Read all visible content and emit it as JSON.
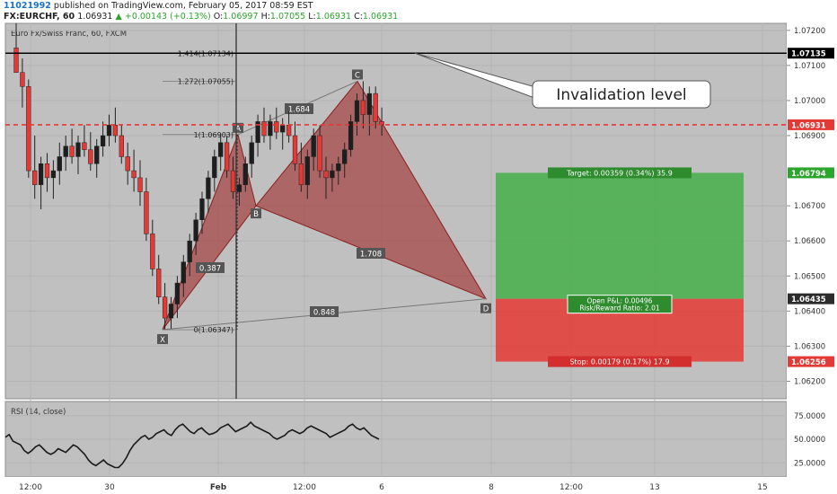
{
  "header": {
    "publish_id": "11021992",
    "publish_text": " published on TradingView.com, February 05, 2017 08:59 EST",
    "symbol": "FX:EURCHF, 60",
    "last": "1.06931",
    "change": "+0.00143 (+0.13%)",
    "open_label": "O:",
    "open": "1.06997",
    "high_label": "H:",
    "high": "1.07055",
    "low_label": "L:",
    "low": "1.06931",
    "close_label": "C:",
    "close": "1.06931"
  },
  "chart_data": {
    "type": "candlestick",
    "title": "Euro Fx/Swiss Franc, 60, FXCM",
    "price_axis": [
      "1.07200",
      "1.07100",
      "1.07000",
      "1.06900",
      "1.06700",
      "1.06600",
      "1.06500",
      "1.06400",
      "1.06300",
      "1.06200"
    ],
    "price_range": [
      1.0615,
      1.0722
    ],
    "price_tags": [
      {
        "label": "1.07135",
        "value": 1.07135,
        "color": "#000000"
      },
      {
        "label": "1.06931",
        "value": 1.06931,
        "color": "#e53935"
      },
      {
        "label": "1.06794",
        "value": 1.06794,
        "color": "#2ba52b"
      },
      {
        "label": "1.06435",
        "value": 1.06435,
        "color": "#2c2c2c"
      },
      {
        "label": "1.06256",
        "value": 1.06256,
        "color": "#e53935"
      }
    ],
    "time_axis": [
      "12:00",
      "30",
      "Feb",
      "12:00",
      "6",
      "8",
      "12:00",
      "13",
      "15"
    ],
    "harmonic": {
      "points": [
        {
          "label": "X",
          "value": 1.06347
        },
        {
          "label": "A",
          "value": 1.06903
        },
        {
          "label": "B",
          "value": 1.067
        },
        {
          "label": "C",
          "value": 1.07055
        },
        {
          "label": "D",
          "value": 1.06435
        }
      ],
      "ratios": [
        "0.387",
        "1.684",
        "1.708",
        "0.848"
      ]
    },
    "fib_levels": [
      {
        "label": "1.414(1.07134)",
        "value": 1.07134
      },
      {
        "label": "1.272(1.07055)",
        "value": 1.07055
      },
      {
        "label": "1(1.06903)",
        "value": 1.06903
      },
      {
        "label": "0(1.06347)",
        "value": 1.06347
      }
    ],
    "position": {
      "target": "Target: 0.00359 (0.34%) 35.9",
      "stop": "Stop: 0.00179 (0.17%) 17.9",
      "pnl": "Open P&L: 0.00496",
      "rr": "Risk/Reward Ratio: 2.01",
      "entry": 1.06435,
      "target_value": 1.06794,
      "stop_value": 1.06256
    },
    "annotation": "Invalidation level",
    "rsi": {
      "title": "RSI (14, close)",
      "axis": [
        "75.0000",
        "50.0000",
        "25.0000"
      ],
      "range": [
        10,
        90
      ],
      "values": [
        52,
        55,
        48,
        46,
        44,
        38,
        35,
        38,
        42,
        44,
        40,
        36,
        34,
        36,
        40,
        38,
        36,
        40,
        44,
        42,
        38,
        34,
        28,
        24,
        22,
        25,
        28,
        24,
        22,
        20,
        20,
        24,
        30,
        38,
        44,
        48,
        52,
        54,
        50,
        52,
        56,
        58,
        60,
        56,
        54,
        60,
        64,
        66,
        62,
        58,
        56,
        60,
        62,
        58,
        55,
        56,
        58,
        62,
        64,
        66,
        62,
        58,
        60,
        62,
        64,
        68,
        64,
        62,
        60,
        58,
        56,
        52,
        50,
        52,
        54,
        58,
        60,
        58,
        56,
        58,
        62,
        64,
        62,
        60,
        58,
        56,
        52,
        54,
        56,
        58,
        60,
        64,
        66,
        62,
        60,
        62,
        58,
        54,
        52,
        50
      ]
    },
    "candles": [
      [
        1.0715,
        1.0722,
        1.0708,
        1.0708
      ],
      [
        1.0708,
        1.0712,
        1.0698,
        1.0704
      ],
      [
        1.0704,
        1.0706,
        1.0678,
        1.068
      ],
      [
        1.068,
        1.069,
        1.0672,
        1.0676
      ],
      [
        1.0676,
        1.0684,
        1.0669,
        1.0682
      ],
      [
        1.0682,
        1.0685,
        1.0674,
        1.0678
      ],
      [
        1.0678,
        1.0683,
        1.0672,
        1.068
      ],
      [
        1.068,
        1.0688,
        1.0676,
        1.0684
      ],
      [
        1.0684,
        1.069,
        1.068,
        1.0687
      ],
      [
        1.0687,
        1.0692,
        1.0682,
        1.0684
      ],
      [
        1.0684,
        1.069,
        1.0679,
        1.0688
      ],
      [
        1.0688,
        1.0693,
        1.0684,
        1.0686
      ],
      [
        1.0686,
        1.0691,
        1.068,
        1.0682
      ],
      [
        1.0682,
        1.0689,
        1.0678,
        1.0687
      ],
      [
        1.0687,
        1.0694,
        1.0684,
        1.069
      ],
      [
        1.069,
        1.0696,
        1.0687,
        1.0693
      ],
      [
        1.0693,
        1.0698,
        1.0688,
        1.069
      ],
      [
        1.069,
        1.0693,
        1.0682,
        1.0684
      ],
      [
        1.0684,
        1.0688,
        1.0676,
        1.068
      ],
      [
        1.068,
        1.0686,
        1.0674,
        1.0678
      ],
      [
        1.0678,
        1.0683,
        1.067,
        1.0674
      ],
      [
        1.0674,
        1.0678,
        1.066,
        1.0662
      ],
      [
        1.0662,
        1.0666,
        1.065,
        1.0652
      ],
      [
        1.0652,
        1.0656,
        1.0642,
        1.0644
      ],
      [
        1.0644,
        1.0648,
        1.06347,
        1.0638
      ],
      [
        1.0638,
        1.0644,
        1.0635,
        1.0642
      ],
      [
        1.0642,
        1.065,
        1.0638,
        1.0648
      ],
      [
        1.0648,
        1.0656,
        1.0644,
        1.0654
      ],
      [
        1.0654,
        1.0662,
        1.065,
        1.066
      ],
      [
        1.066,
        1.0668,
        1.0656,
        1.0666
      ],
      [
        1.0666,
        1.0674,
        1.0662,
        1.0672
      ],
      [
        1.0672,
        1.068,
        1.0668,
        1.0678
      ],
      [
        1.0678,
        1.0686,
        1.0674,
        1.0684
      ],
      [
        1.0684,
        1.06903,
        1.068,
        1.0688
      ],
      [
        1.0688,
        1.069,
        1.0678,
        1.068
      ],
      [
        1.068,
        1.0684,
        1.0672,
        1.0674
      ],
      [
        1.0674,
        1.0678,
        1.067,
        1.0676
      ],
      [
        1.0676,
        1.0684,
        1.0674,
        1.0682
      ],
      [
        1.0682,
        1.069,
        1.0678,
        1.0688
      ],
      [
        1.0688,
        1.0696,
        1.0684,
        1.0694
      ],
      [
        1.0694,
        1.0698,
        1.0688,
        1.069
      ],
      [
        1.069,
        1.0696,
        1.0686,
        1.0694
      ],
      [
        1.0694,
        1.0698,
        1.0689,
        1.0691
      ],
      [
        1.0691,
        1.0695,
        1.0686,
        1.0693
      ],
      [
        1.0693,
        1.0697,
        1.0688,
        1.069
      ],
      [
        1.069,
        1.0694,
        1.068,
        1.0682
      ],
      [
        1.0682,
        1.0688,
        1.0674,
        1.0676
      ],
      [
        1.0676,
        1.0686,
        1.0672,
        1.0684
      ],
      [
        1.0684,
        1.0692,
        1.068,
        1.069
      ],
      [
        1.069,
        1.0693,
        1.0678,
        1.068
      ],
      [
        1.068,
        1.0684,
        1.0672,
        1.0678
      ],
      [
        1.0678,
        1.0682,
        1.0674,
        1.068
      ],
      [
        1.068,
        1.0684,
        1.0676,
        1.0682
      ],
      [
        1.0682,
        1.0688,
        1.0678,
        1.0686
      ],
      [
        1.0686,
        1.0696,
        1.0684,
        1.0694
      ],
      [
        1.0694,
        1.0702,
        1.069,
        1.07
      ],
      [
        1.07,
        1.07055,
        1.0692,
        1.0696
      ],
      [
        1.0696,
        1.0704,
        1.069,
        1.0702
      ],
      [
        1.0702,
        1.0704,
        1.0692,
        1.0694
      ],
      [
        1.0694,
        1.0698,
        1.069,
        1.06931
      ]
    ]
  }
}
